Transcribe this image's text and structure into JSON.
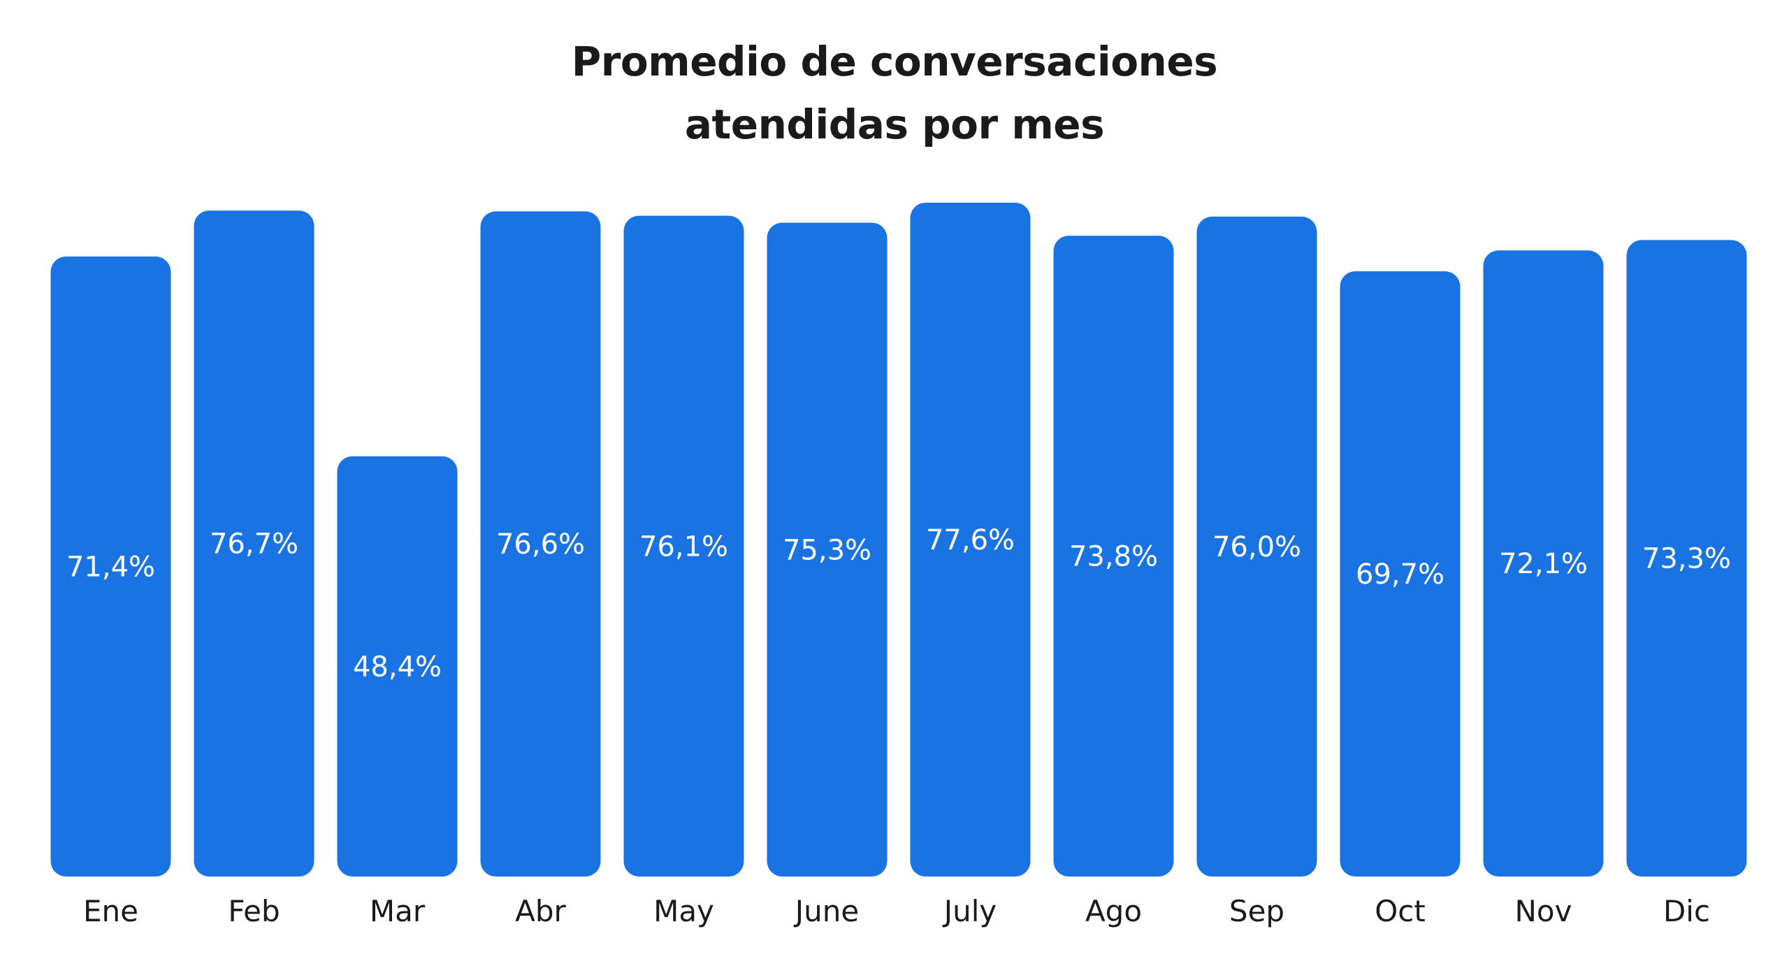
{
  "chart_data": {
    "type": "bar",
    "title_lines": [
      "Promedio de conversaciones",
      "atendidas por mes"
    ],
    "xlabel": "",
    "ylabel": "",
    "categories": [
      "Ene",
      "Feb",
      "Mar",
      "Abr",
      "May",
      "June",
      "July",
      "Ago",
      "Sep",
      "Oct",
      "Nov",
      "Dic"
    ],
    "values": [
      71.4,
      76.7,
      48.4,
      76.6,
      76.1,
      75.3,
      77.6,
      73.8,
      76.0,
      69.7,
      72.1,
      73.3
    ],
    "value_labels": [
      "71,4%",
      "76,7%",
      "48,4%",
      "76,6%",
      "76,1%",
      "75,3%",
      "77,6%",
      "73,8%",
      "76,0%",
      "69,7%",
      "72,1%",
      "73,3%"
    ],
    "ylim": [
      0,
      80
    ],
    "grid": false,
    "legend": "none",
    "colors": {
      "bar": "#1A73E3",
      "bar_label": "#FFFFFF",
      "tick_label": "#1A1A1A",
      "title": "#1A1A1A"
    }
  }
}
